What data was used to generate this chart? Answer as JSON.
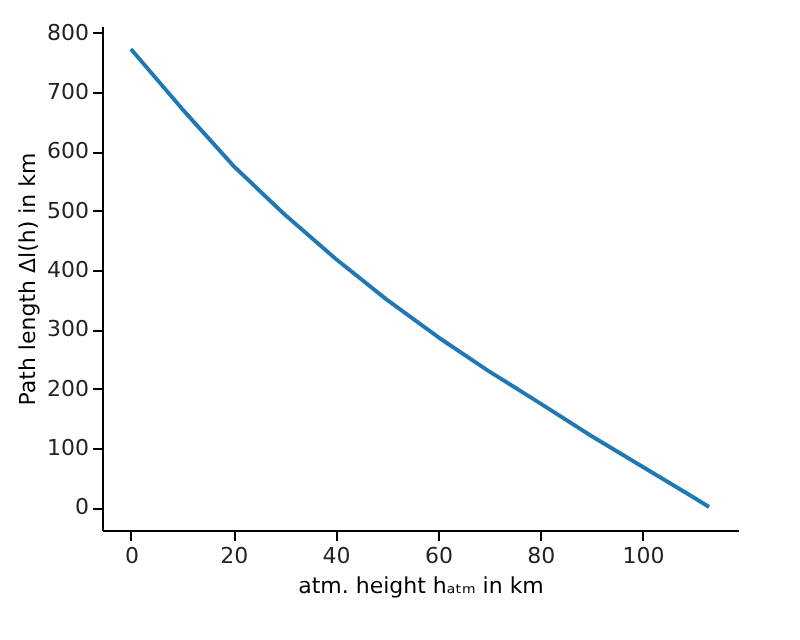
{
  "chart_data": {
    "type": "line",
    "xlabel": "atm. height hₐₜₘ in km",
    "ylabel": "Path length Δl(h) in km",
    "x": [
      0,
      10,
      20,
      30,
      40,
      50,
      60,
      70,
      80,
      90,
      100,
      110,
      113
    ],
    "series": [
      {
        "color": "#1f77b4",
        "values": [
          773,
          672,
          576,
          494,
          419,
          350,
          287,
          229,
          175,
          120,
          68,
          16,
          0
        ]
      }
    ],
    "xlim": [
      -5.65,
      118.65
    ],
    "xticks": [
      0,
      20,
      40,
      60,
      80,
      100
    ],
    "ylim": [
      -38.7,
      811.7
    ],
    "yticks": [
      0,
      100,
      200,
      300,
      400,
      500,
      600,
      700,
      800
    ],
    "grid": false,
    "legend": false,
    "marker": "none",
    "line_style": "solid"
  }
}
